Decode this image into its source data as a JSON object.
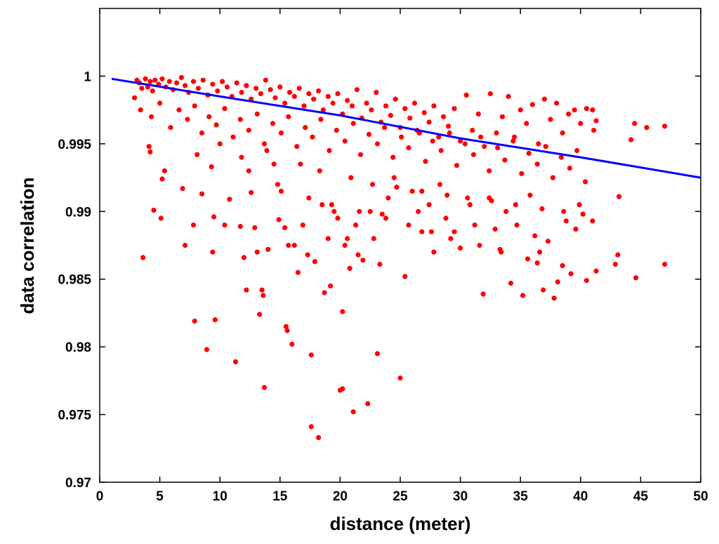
{
  "chart_data": {
    "type": "scatter",
    "title": "",
    "xlabel": "distance (meter)",
    "ylabel": "data correlation",
    "xlim": [
      0,
      50
    ],
    "ylim": [
      0.97,
      1.005
    ],
    "xticks": [
      0,
      5,
      10,
      15,
      20,
      25,
      30,
      35,
      40,
      45,
      50
    ],
    "xtick_labels": [
      "0",
      "5",
      "10",
      "15",
      "20",
      "25",
      "30",
      "35",
      "40",
      "45",
      "50"
    ],
    "yticks": [
      0.97,
      0.975,
      0.98,
      0.985,
      0.99,
      0.995,
      1
    ],
    "ytick_labels": [
      "0.97",
      "0.975",
      "0.98",
      "0.985",
      "0.99",
      "0.995",
      "1"
    ],
    "grid": false,
    "legend": "none",
    "series": [
      {
        "kind": "scatter",
        "color": "#ff0000",
        "points": [
          [
            2.9,
            0.9984
          ],
          [
            3.1,
            0.9997
          ],
          [
            3.3,
            0.9995
          ],
          [
            3.5,
            0.9991
          ],
          [
            3.8,
            0.9998
          ],
          [
            4.0,
            0.9992
          ],
          [
            4.2,
            0.9996
          ],
          [
            4.4,
            0.9989
          ],
          [
            4.6,
            0.9997
          ],
          [
            4.9,
            0.9994
          ],
          [
            5.2,
            0.9998
          ],
          [
            5.5,
            0.9992
          ],
          [
            5.8,
            0.9996
          ],
          [
            6.1,
            0.999
          ],
          [
            6.4,
            0.9995
          ],
          [
            6.8,
            0.9999
          ],
          [
            7.1,
            0.9993
          ],
          [
            7.4,
            0.9988
          ],
          [
            7.8,
            0.9996
          ],
          [
            8.2,
            0.9991
          ],
          [
            8.6,
            0.9997
          ],
          [
            9.0,
            0.9986
          ],
          [
            9.4,
            0.9994
          ],
          [
            9.8,
            0.9989
          ],
          [
            10.2,
            0.9996
          ],
          [
            10.6,
            0.9992
          ],
          [
            11.0,
            0.9985
          ],
          [
            11.4,
            0.9995
          ],
          [
            11.8,
            0.9988
          ],
          [
            12.2,
            0.9993
          ],
          [
            12.6,
            0.9983
          ],
          [
            13.0,
            0.9991
          ],
          [
            13.4,
            0.9987
          ],
          [
            13.8,
            0.9997
          ],
          [
            14.2,
            0.999
          ],
          [
            14.6,
            0.9984
          ],
          [
            15.0,
            0.9992
          ],
          [
            15.4,
            0.998
          ],
          [
            15.8,
            0.9988
          ],
          [
            16.2,
            0.9985
          ],
          [
            16.6,
            0.9991
          ],
          [
            17.0,
            0.9978
          ],
          [
            17.4,
            0.9987
          ],
          [
            17.8,
            0.9983
          ],
          [
            18.2,
            0.9989
          ],
          [
            18.6,
            0.9975
          ],
          [
            19.0,
            0.9985
          ],
          [
            19.4,
            0.998
          ],
          [
            19.8,
            0.9987
          ],
          [
            20.2,
            0.9972
          ],
          [
            20.6,
            0.9982
          ],
          [
            21.0,
            0.9978
          ],
          [
            21.4,
            0.999
          ],
          [
            21.8,
            0.9969
          ],
          [
            22.2,
            0.998
          ],
          [
            22.6,
            0.9975
          ],
          [
            23.0,
            0.9988
          ],
          [
            23.4,
            0.9966
          ],
          [
            23.8,
            0.9978
          ],
          [
            24.2,
            0.9971
          ],
          [
            24.6,
            0.9983
          ],
          [
            25.0,
            0.9962
          ],
          [
            25.4,
            0.9976
          ],
          [
            25.8,
            0.9969
          ],
          [
            26.2,
            0.998
          ],
          [
            26.6,
            0.9958
          ],
          [
            27.0,
            0.9973
          ],
          [
            27.4,
            0.9966
          ],
          [
            27.8,
            0.9978
          ],
          [
            28.2,
            0.9955
          ],
          [
            28.6,
            0.997
          ],
          [
            29.0,
            0.9963
          ],
          [
            29.5,
            0.9976
          ],
          [
            30.0,
            0.9952
          ],
          [
            30.5,
            0.9986
          ],
          [
            31.0,
            0.996
          ],
          [
            31.5,
            0.9972
          ],
          [
            32.0,
            0.9948
          ],
          [
            32.5,
            0.9987
          ],
          [
            33.0,
            0.9958
          ],
          [
            33.5,
            0.997
          ],
          [
            34.0,
            0.9985
          ],
          [
            34.5,
            0.9955
          ],
          [
            35.0,
            0.9975
          ],
          [
            35.5,
            0.9965
          ],
          [
            36.0,
            0.9979
          ],
          [
            36.5,
            0.995
          ],
          [
            37.0,
            0.9983
          ],
          [
            37.5,
            0.9968
          ],
          [
            38.0,
            0.998
          ],
          [
            38.5,
            0.9958
          ],
          [
            39.0,
            0.9972
          ],
          [
            39.5,
            0.9975
          ],
          [
            40.0,
            0.9965
          ],
          [
            40.5,
            0.9976
          ],
          [
            41.0,
            0.9975
          ],
          [
            41.3,
            0.9967
          ],
          [
            3.4,
            0.9975
          ],
          [
            4.3,
            0.997
          ],
          [
            5.0,
            0.998
          ],
          [
            5.9,
            0.9962
          ],
          [
            6.6,
            0.9975
          ],
          [
            7.3,
            0.9968
          ],
          [
            7.9,
            0.9978
          ],
          [
            8.5,
            0.9958
          ],
          [
            9.1,
            0.997
          ],
          [
            9.7,
            0.9964
          ],
          [
            10.4,
            0.9976
          ],
          [
            11.1,
            0.9955
          ],
          [
            11.7,
            0.9968
          ],
          [
            12.4,
            0.996
          ],
          [
            13.1,
            0.9972
          ],
          [
            13.7,
            0.995
          ],
          [
            14.4,
            0.9965
          ],
          [
            15.1,
            0.9958
          ],
          [
            15.7,
            0.997
          ],
          [
            16.4,
            0.9948
          ],
          [
            17.1,
            0.9962
          ],
          [
            17.7,
            0.9955
          ],
          [
            18.4,
            0.9968
          ],
          [
            19.1,
            0.9945
          ],
          [
            19.7,
            0.996
          ],
          [
            20.4,
            0.9952
          ],
          [
            21.1,
            0.9965
          ],
          [
            21.7,
            0.9942
          ],
          [
            22.4,
            0.9957
          ],
          [
            23.1,
            0.995
          ],
          [
            23.7,
            0.9962
          ],
          [
            24.4,
            0.994
          ],
          [
            25.1,
            0.9955
          ],
          [
            25.7,
            0.9947
          ],
          [
            26.4,
            0.996
          ],
          [
            27.1,
            0.9937
          ],
          [
            27.7,
            0.9952
          ],
          [
            28.4,
            0.9945
          ],
          [
            29.1,
            0.9958
          ],
          [
            29.7,
            0.9934
          ],
          [
            30.4,
            0.995
          ],
          [
            31.1,
            0.9942
          ],
          [
            31.7,
            0.9955
          ],
          [
            32.4,
            0.993
          ],
          [
            33.1,
            0.9947
          ],
          [
            33.7,
            0.9938
          ],
          [
            34.4,
            0.9952
          ],
          [
            35.1,
            0.9928
          ],
          [
            35.7,
            0.9943
          ],
          [
            36.4,
            0.9935
          ],
          [
            37.1,
            0.9948
          ],
          [
            37.7,
            0.9925
          ],
          [
            38.4,
            0.994
          ],
          [
            39.1,
            0.9932
          ],
          [
            39.7,
            0.9945
          ],
          [
            40.4,
            0.9922
          ],
          [
            41.1,
            0.996
          ],
          [
            44.5,
            0.9965
          ],
          [
            45.5,
            0.9962
          ],
          [
            47.0,
            0.9963
          ],
          [
            44.2,
            0.9953
          ],
          [
            3.6,
            0.9866
          ],
          [
            4.1,
            0.9948
          ],
          [
            4.2,
            0.9944
          ],
          [
            4.5,
            0.9901
          ],
          [
            5.1,
            0.9895
          ],
          [
            5.2,
            0.9924
          ],
          [
            5.4,
            0.993
          ],
          [
            6.9,
            0.9917
          ],
          [
            7.1,
            0.9875
          ],
          [
            7.8,
            0.989
          ],
          [
            7.9,
            0.9819
          ],
          [
            8.1,
            0.9942
          ],
          [
            8.5,
            0.9913
          ],
          [
            8.9,
            0.9798
          ],
          [
            9.3,
            0.9933
          ],
          [
            9.4,
            0.987
          ],
          [
            9.5,
            0.9896
          ],
          [
            9.6,
            0.982
          ],
          [
            10.4,
            0.989
          ],
          [
            10.8,
            0.9909
          ],
          [
            11.3,
            0.9789
          ],
          [
            11.7,
            0.9889
          ],
          [
            12.0,
            0.9866
          ],
          [
            12.2,
            0.9842
          ],
          [
            12.4,
            0.993
          ],
          [
            12.6,
            0.9914
          ],
          [
            12.9,
            0.9888
          ],
          [
            13.1,
            0.987
          ],
          [
            13.3,
            0.9824
          ],
          [
            13.5,
            0.9842
          ],
          [
            13.6,
            0.9838
          ],
          [
            13.7,
            0.977
          ],
          [
            14.0,
            0.9872
          ],
          [
            14.5,
            0.9935
          ],
          [
            14.9,
            0.9894
          ],
          [
            15.1,
            0.9915
          ],
          [
            15.4,
            0.9888
          ],
          [
            15.5,
            0.9815
          ],
          [
            15.6,
            0.9812
          ],
          [
            15.7,
            0.9875
          ],
          [
            16.0,
            0.9802
          ],
          [
            16.2,
            0.9875
          ],
          [
            16.5,
            0.9855
          ],
          [
            16.9,
            0.989
          ],
          [
            17.3,
            0.9868
          ],
          [
            17.6,
            0.9794
          ],
          [
            17.6,
            0.9741
          ],
          [
            17.9,
            0.9863
          ],
          [
            18.2,
            0.9733
          ],
          [
            18.5,
            0.9905
          ],
          [
            18.7,
            0.984
          ],
          [
            19.0,
            0.988
          ],
          [
            19.2,
            0.9845
          ],
          [
            19.5,
            0.99
          ],
          [
            19.8,
            0.9895
          ],
          [
            20.0,
            0.9768
          ],
          [
            20.2,
            0.9826
          ],
          [
            20.2,
            0.9769
          ],
          [
            20.4,
            0.9875
          ],
          [
            20.6,
            0.988
          ],
          [
            20.8,
            0.9858
          ],
          [
            21.1,
            0.9752
          ],
          [
            21.3,
            0.989
          ],
          [
            21.5,
            0.9868
          ],
          [
            21.9,
            0.9864
          ],
          [
            22.3,
            0.9758
          ],
          [
            22.5,
            0.99
          ],
          [
            22.8,
            0.988
          ],
          [
            23.1,
            0.9795
          ],
          [
            23.3,
            0.9861
          ],
          [
            23.5,
            0.9898
          ],
          [
            24.0,
            0.991
          ],
          [
            24.5,
            0.9925
          ],
          [
            25.0,
            0.9777
          ],
          [
            25.4,
            0.9852
          ],
          [
            26.0,
            0.9915
          ],
          [
            26.5,
            0.99
          ],
          [
            26.8,
            0.9885
          ],
          [
            27.4,
            0.9905
          ],
          [
            27.8,
            0.987
          ],
          [
            28.3,
            0.992
          ],
          [
            28.8,
            0.9895
          ],
          [
            29.5,
            0.9885
          ],
          [
            30.0,
            0.9873
          ],
          [
            30.8,
            0.9905
          ],
          [
            31.2,
            0.989
          ],
          [
            31.9,
            0.9839
          ],
          [
            32.4,
            0.991
          ],
          [
            32.9,
            0.9887
          ],
          [
            33.3,
            0.9872
          ],
          [
            33.8,
            0.99
          ],
          [
            34.2,
            0.9847
          ],
          [
            34.7,
            0.989
          ],
          [
            35.2,
            0.9838
          ],
          [
            35.8,
            0.9912
          ],
          [
            36.2,
            0.9882
          ],
          [
            36.4,
            0.9862
          ],
          [
            36.6,
            0.987
          ],
          [
            36.9,
            0.9842
          ],
          [
            37.3,
            0.9878
          ],
          [
            37.8,
            0.9836
          ],
          [
            38.1,
            0.9848
          ],
          [
            38.5,
            0.986
          ],
          [
            38.8,
            0.9893
          ],
          [
            39.2,
            0.9854
          ],
          [
            39.6,
            0.9887
          ],
          [
            39.9,
            0.9905
          ],
          [
            40.5,
            0.9849
          ],
          [
            41.0,
            0.9893
          ],
          [
            41.3,
            0.9856
          ],
          [
            42.9,
            0.9861
          ],
          [
            43.1,
            0.9868
          ],
          [
            43.2,
            0.9911
          ],
          [
            44.6,
            0.9851
          ],
          [
            47.0,
            0.9861
          ],
          [
            10.0,
            0.995
          ],
          [
            11.8,
            0.994
          ],
          [
            13.9,
            0.9945
          ],
          [
            16.7,
            0.9935
          ],
          [
            18.3,
            0.993
          ],
          [
            20.9,
            0.9925
          ],
          [
            22.7,
            0.992
          ],
          [
            24.7,
            0.9918
          ],
          [
            26.8,
            0.9915
          ],
          [
            28.9,
            0.9912
          ],
          [
            30.6,
            0.991
          ],
          [
            32.6,
            0.9908
          ],
          [
            34.6,
            0.9905
          ],
          [
            36.8,
            0.9902
          ],
          [
            38.6,
            0.99
          ],
          [
            40.2,
            0.9898
          ],
          [
            14.8,
            0.992
          ],
          [
            17.4,
            0.991
          ],
          [
            19.3,
            0.9905
          ],
          [
            21.6,
            0.99
          ],
          [
            23.8,
            0.9895
          ],
          [
            25.7,
            0.989
          ],
          [
            27.6,
            0.9885
          ],
          [
            29.2,
            0.988
          ],
          [
            31.6,
            0.9875
          ],
          [
            33.4,
            0.987
          ],
          [
            35.6,
            0.9865
          ]
        ]
      },
      {
        "kind": "line",
        "color": "#0000ff",
        "points": [
          [
            1.0,
            0.9998
          ],
          [
            10.0,
            0.9985
          ],
          [
            20.0,
            0.9971
          ],
          [
            30.0,
            0.9954
          ],
          [
            40.0,
            0.994
          ],
          [
            50.0,
            0.9925
          ]
        ]
      }
    ]
  }
}
